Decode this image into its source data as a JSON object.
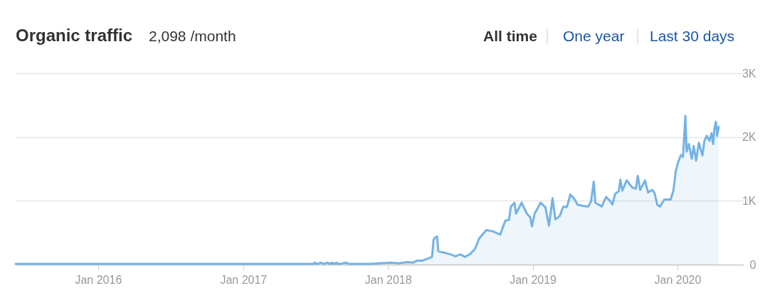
{
  "chart_data": {
    "type": "area",
    "title": "Organic traffic",
    "annotations": [
      "2,098 /month",
      "All time",
      "One year",
      "Last 30 days"
    ],
    "x": [
      "2015-06-07",
      "2015-10-25",
      "2016-04-21",
      "2016-10-17",
      "2017-04-15",
      "2017-06-26",
      "2017-07-01",
      "2017-07-06",
      "2017-07-17",
      "2017-07-23",
      "2017-08-01",
      "2017-08-06",
      "2017-08-13",
      "2017-08-19",
      "2017-08-24",
      "2017-08-31",
      "2017-09-18",
      "2017-09-25",
      "2017-11-16",
      "2018-01-10",
      "2018-01-28",
      "2018-02-18",
      "2018-03-05",
      "2018-03-14",
      "2018-03-28",
      "2018-04-10",
      "2018-04-22",
      "2018-04-26",
      "2018-05-01",
      "2018-05-05",
      "2018-05-08",
      "2018-05-21",
      "2018-06-08",
      "2018-06-20",
      "2018-07-03",
      "2018-07-14",
      "2018-07-26",
      "2018-08-08",
      "2018-08-19",
      "2018-09-06",
      "2018-09-23",
      "2018-10-11",
      "2018-10-24",
      "2018-11-02",
      "2018-11-07",
      "2018-11-16",
      "2018-11-20",
      "2018-12-04",
      "2018-12-17",
      "2018-12-26",
      "2018-12-30",
      "2019-01-06",
      "2019-01-21",
      "2019-02-02",
      "2019-02-11",
      "2019-02-20",
      "2019-02-27",
      "2019-03-10",
      "2019-03-19",
      "2019-03-28",
      "2019-04-06",
      "2019-04-17",
      "2019-04-24",
      "2019-05-08",
      "2019-05-21",
      "2019-05-28",
      "2019-06-04",
      "2019-06-08",
      "2019-06-19",
      "2019-06-24",
      "2019-07-05",
      "2019-07-15",
      "2019-07-21",
      "2019-07-28",
      "2019-08-06",
      "2019-08-10",
      "2019-08-15",
      "2019-08-26",
      "2019-08-31",
      "2019-09-09",
      "2019-09-18",
      "2019-09-23",
      "2019-09-29",
      "2019-10-11",
      "2019-10-19",
      "2019-10-29",
      "2019-11-04",
      "2019-11-11",
      "2019-11-18",
      "2019-11-29",
      "2019-12-15",
      "2019-12-22",
      "2019-12-28",
      "2020-01-03",
      "2020-01-10",
      "2020-01-15",
      "2020-01-21",
      "2020-01-24",
      "2020-01-30",
      "2020-02-06",
      "2020-02-11",
      "2020-02-17",
      "2020-02-24",
      "2020-03-04",
      "2020-03-09",
      "2020-03-15",
      "2020-03-22",
      "2020-03-27",
      "2020-03-31",
      "2020-04-03",
      "2020-04-07",
      "2020-04-10",
      "2020-04-14"
    ],
    "series": [
      {
        "color": "#74b3e6",
        "values": [
          10,
          10,
          10,
          10,
          10,
          10,
          30,
          10,
          30,
          10,
          30,
          10,
          30,
          10,
          30,
          10,
          30,
          10,
          10,
          30,
          20,
          40,
          30,
          60,
          60,
          90,
          120,
          390,
          430,
          440,
          210,
          190,
          160,
          130,
          160,
          120,
          160,
          240,
          410,
          540,
          520,
          470,
          690,
          700,
          910,
          970,
          800,
          970,
          800,
          740,
          600,
          800,
          970,
          900,
          610,
          1040,
          710,
          760,
          910,
          900,
          1100,
          1020,
          940,
          920,
          910,
          990,
          1300,
          970,
          930,
          910,
          1060,
          1000,
          940,
          1110,
          1150,
          1330,
          1160,
          1320,
          1280,
          1210,
          1190,
          1390,
          1170,
          1320,
          1130,
          1170,
          1130,
          940,
          910,
          1020,
          1020,
          1170,
          1470,
          1610,
          1720,
          1690,
          2330,
          1770,
          1890,
          1660,
          1860,
          1630,
          1910,
          1710,
          1940,
          2020,
          1940,
          2060,
          1890,
          2130,
          2240,
          2020,
          2160
        ]
      }
    ],
    "xlim": [
      "2015-06-07",
      "2020-06-16"
    ],
    "xticks": [
      {
        "value": "2016-01-01",
        "label": "Jan 2016"
      },
      {
        "value": "2017-01-01",
        "label": "Jan 2017"
      },
      {
        "value": "2018-01-01",
        "label": "Jan 2018"
      },
      {
        "value": "2019-01-01",
        "label": "Jan 2019"
      },
      {
        "value": "2020-01-01",
        "label": "Jan 2020"
      }
    ],
    "ylim": [
      0,
      3000
    ],
    "yticks": [
      0,
      {
        "value": 1000,
        "label": "1K"
      },
      {
        "value": 2000,
        "label": "2K"
      },
      {
        "value": 3000,
        "label": "3K"
      }
    ],
    "grid": "y"
  }
}
